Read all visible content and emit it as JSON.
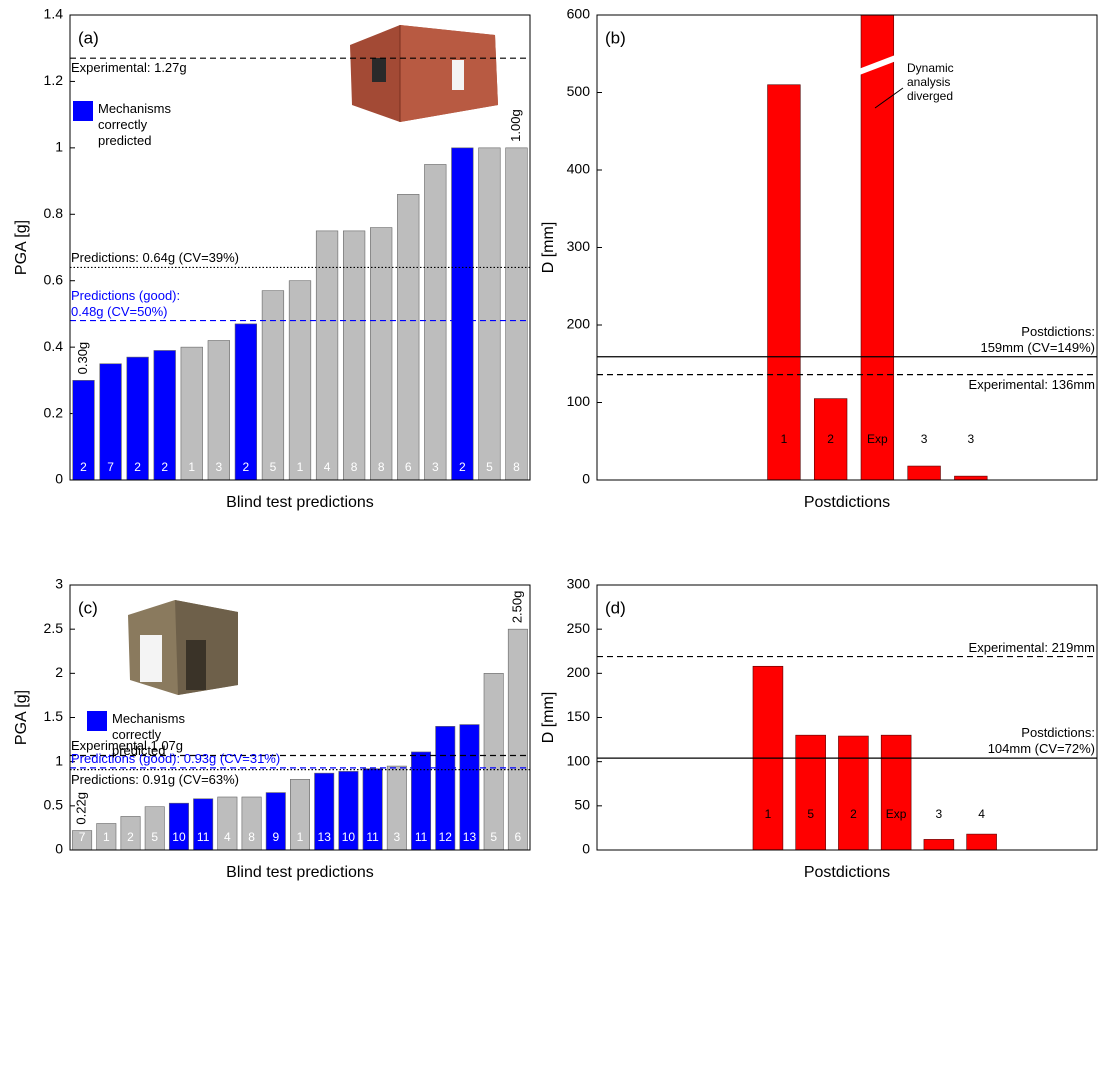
{
  "chart_data": [
    {
      "type": "bar",
      "label": "(a)",
      "xlabel": "Blind test predictions",
      "ylabel": "PGA [g]",
      "ylim": [
        0,
        1.4
      ],
      "yticks": [
        0,
        0.2,
        0.4,
        0.6,
        0.8,
        1,
        1.2,
        1.4
      ],
      "categories": [
        "2",
        "7",
        "2",
        "2",
        "1",
        "3",
        "2",
        "5",
        "1",
        "4",
        "8",
        "8",
        "6",
        "3",
        "2",
        "5",
        "8"
      ],
      "values": [
        0.3,
        0.35,
        0.37,
        0.39,
        0.4,
        0.42,
        0.47,
        0.57,
        0.6,
        0.75,
        0.75,
        0.76,
        0.86,
        0.95,
        1.0,
        1.0,
        1.0
      ],
      "value_labels": [
        "0.30g",
        null,
        null,
        null,
        null,
        null,
        null,
        null,
        null,
        null,
        null,
        null,
        null,
        null,
        null,
        null,
        "1.00g"
      ],
      "colors": [
        "#0000ff",
        "#0000ff",
        "#0000ff",
        "#0000ff",
        "#bdbdbd",
        "#bdbdbd",
        "#0000ff",
        "#bdbdbd",
        "#bdbdbd",
        "#bdbdbd",
        "#bdbdbd",
        "#bdbdbd",
        "#bdbdbd",
        "#bdbdbd",
        "#0000ff",
        "#bdbdbd",
        "#bdbdbd"
      ],
      "legend": {
        "label": "Mechanisms correctly predicted",
        "color": "#0000ff"
      },
      "reference_lines": [
        {
          "value": 1.27,
          "label": "Experimental: 1.27g",
          "style": "dashed",
          "color": "#000000"
        },
        {
          "value": 0.64,
          "label": "Predictions: 0.64g (CV=39%)",
          "style": "dotted",
          "color": "#000000"
        },
        {
          "value": 0.48,
          "label": "Predictions (good): 0.48g (CV=50%)",
          "style": "dashed",
          "color": "#0000ff"
        }
      ]
    },
    {
      "type": "bar",
      "label": "(b)",
      "xlabel": "Postdictions",
      "ylabel": "D [mm]",
      "ylim": [
        0,
        600
      ],
      "yticks": [
        0,
        100,
        200,
        300,
        400,
        500,
        600
      ],
      "categories": [
        "1",
        "2",
        "Exp",
        "3",
        "3"
      ],
      "values": [
        510,
        105,
        600,
        18,
        5
      ],
      "color": "#ff0000",
      "annotation": "Dynamic analysis diverged",
      "reference_lines": [
        {
          "value": 159,
          "label": "Postdictions: 159mm (CV=149%)",
          "style": "solid",
          "color": "#000000"
        },
        {
          "value": 136,
          "label": "Experimental: 136mm",
          "style": "dashed",
          "color": "#000000"
        }
      ]
    },
    {
      "type": "bar",
      "label": "(c)",
      "xlabel": "Blind test predictions",
      "ylabel": "PGA [g]",
      "ylim": [
        0,
        3
      ],
      "yticks": [
        0,
        0.5,
        1,
        1.5,
        2,
        2.5,
        3
      ],
      "categories": [
        "7",
        "1",
        "2",
        "5",
        "10",
        "11",
        "4",
        "8",
        "9",
        "1",
        "13",
        "10",
        "11",
        "3",
        "11",
        "12",
        "13",
        "5",
        "6"
      ],
      "values": [
        0.22,
        0.3,
        0.38,
        0.49,
        0.53,
        0.58,
        0.6,
        0.6,
        0.65,
        0.8,
        0.87,
        0.89,
        0.92,
        0.95,
        1.11,
        1.4,
        1.42,
        2.0,
        2.5
      ],
      "value_labels": [
        "0.22g",
        null,
        null,
        null,
        null,
        null,
        null,
        null,
        null,
        null,
        null,
        null,
        null,
        null,
        null,
        null,
        null,
        null,
        "2.50g"
      ],
      "colors": [
        "#bdbdbd",
        "#bdbdbd",
        "#bdbdbd",
        "#bdbdbd",
        "#0000ff",
        "#0000ff",
        "#bdbdbd",
        "#bdbdbd",
        "#0000ff",
        "#bdbdbd",
        "#0000ff",
        "#0000ff",
        "#0000ff",
        "#bdbdbd",
        "#0000ff",
        "#0000ff",
        "#0000ff",
        "#bdbdbd",
        "#bdbdbd"
      ],
      "legend": {
        "label": "Mechanisms correctly predicted",
        "color": "#0000ff"
      },
      "reference_lines": [
        {
          "value": 1.07,
          "label": "Experimental 1.07g",
          "style": "dashed",
          "color": "#000000"
        },
        {
          "value": 0.93,
          "label": "Predictions (good): 0.93g (CV=31%)",
          "style": "dashed",
          "color": "#0000ff"
        },
        {
          "value": 0.91,
          "label": "Predictions: 0.91g (CV=63%)",
          "style": "dotted",
          "color": "#000000"
        }
      ]
    },
    {
      "type": "bar",
      "label": "(d)",
      "xlabel": "Postdictions",
      "ylabel": "D [mm]",
      "ylim": [
        0,
        300
      ],
      "yticks": [
        0,
        50,
        100,
        150,
        200,
        250,
        300
      ],
      "categories": [
        "1",
        "5",
        "2",
        "Exp",
        "3",
        "4"
      ],
      "values": [
        208,
        130,
        129,
        130,
        12,
        18
      ],
      "color": "#ff0000",
      "reference_lines": [
        {
          "value": 219,
          "label": "Experimental: 219mm",
          "style": "dashed",
          "color": "#000000"
        },
        {
          "value": 104,
          "label": "Postdictions: 104mm (CV=72%)",
          "style": "solid",
          "color": "#000000"
        }
      ]
    }
  ]
}
